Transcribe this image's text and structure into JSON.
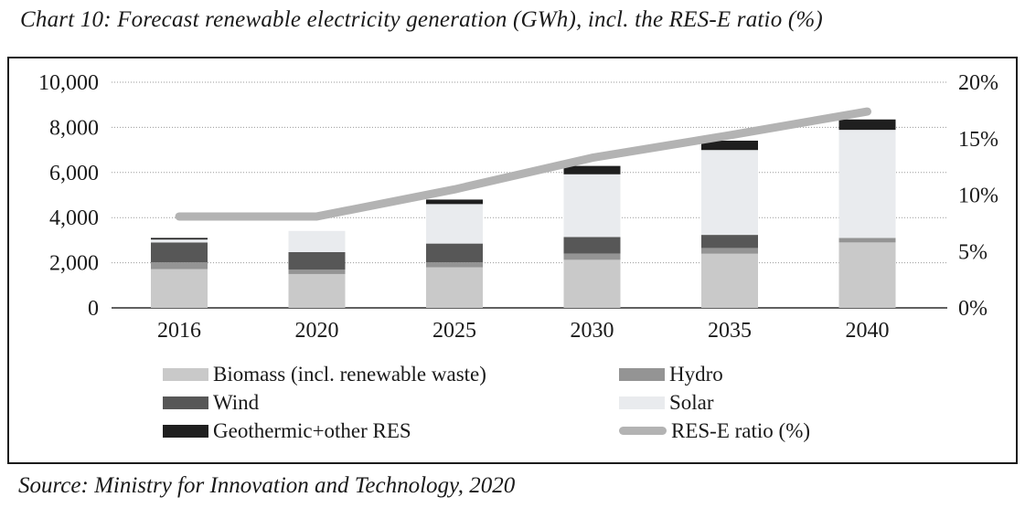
{
  "title": "Chart 10: Forecast renewable electricity generation (GWh), incl. the RES-E ratio (%)",
  "source": "Source: Ministry for Innovation and Technology, 2020",
  "chart_data": {
    "type": "bar",
    "subtype": "stacked-bars-with-line-overlay",
    "title": "Chart 10: Forecast renewable electricity generation (GWh), incl. the RES-E ratio (%)",
    "categories": [
      "2016",
      "2020",
      "2025",
      "2030",
      "2035",
      "2040"
    ],
    "series": [
      {
        "name": "Biomass (incl. renewable waste)",
        "color": "#c9c9c9",
        "values": [
          1720,
          1500,
          1800,
          2130,
          2400,
          2900
        ]
      },
      {
        "name": "Hydro",
        "color": "#949494",
        "values": [
          300,
          200,
          220,
          280,
          255,
          200
        ]
      },
      {
        "name": "Wind",
        "color": "#575757",
        "values": [
          880,
          770,
          830,
          730,
          580,
          0
        ]
      },
      {
        "name": "Solar",
        "color": "#e9ebee",
        "values": [
          130,
          940,
          1750,
          2780,
          3760,
          4790
        ]
      },
      {
        "name": "Geothermic+other RES",
        "color": "#1f1f1f",
        "values": [
          70,
          0,
          200,
          370,
          415,
          460
        ]
      }
    ],
    "bar_totals": [
      3100,
      3410,
      4800,
      6290,
      7410,
      8350
    ],
    "line_series": {
      "name": "RES-E ratio (%)",
      "color": "#b3b3b3",
      "axis": "right",
      "values": [
        8.1,
        8.1,
        10.5,
        13.3,
        15.3,
        17.4
      ]
    },
    "left_axis": {
      "label": "GWh",
      "min": 0,
      "max": 10000,
      "ticks": [
        "10,000",
        "8,000",
        "6,000",
        "4,000",
        "2,000",
        "0"
      ]
    },
    "right_axis": {
      "label": "%",
      "min": 0,
      "max": 20,
      "ticks": [
        "20%",
        "15%",
        "10%",
        "5%",
        "0%"
      ]
    },
    "grid": true,
    "legend_position": "bottom",
    "grid_color": "#9a9a9a",
    "baseline_color": "#2b2b2b",
    "text_color": "#1a1a1a"
  },
  "legend": {
    "items": [
      {
        "label": "Biomass (incl. renewable waste)",
        "swatch": "rect",
        "color": "#c9c9c9"
      },
      {
        "label": "Hydro",
        "swatch": "rect",
        "color": "#949494"
      },
      {
        "label": "Wind",
        "swatch": "rect",
        "color": "#575757"
      },
      {
        "label": "Solar",
        "swatch": "rect",
        "color": "#e9ebee"
      },
      {
        "label": "Geothermic+other RES",
        "swatch": "rect",
        "color": "#1f1f1f"
      },
      {
        "label": "RES-E ratio (%)",
        "swatch": "line",
        "color": "#b3b3b3"
      }
    ]
  }
}
